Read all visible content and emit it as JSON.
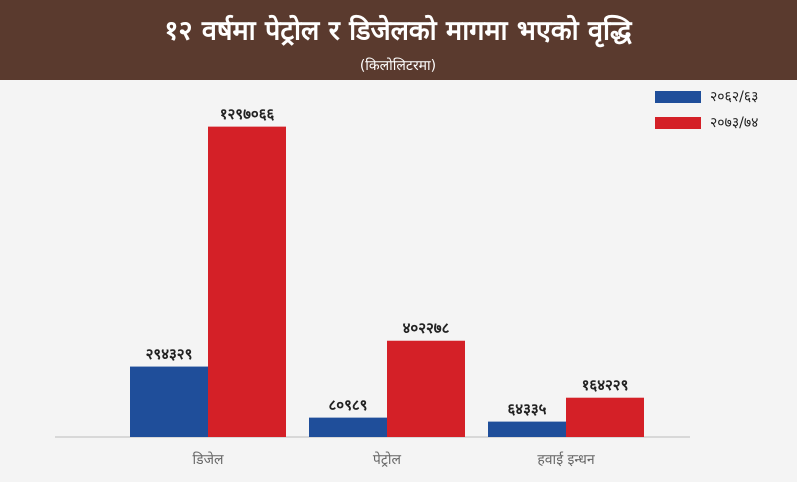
{
  "chart_data": {
    "type": "bar",
    "title": "१२ वर्षमा पेट्रोल र डिजेलको मागमा भएको वृद्धि",
    "subtitle": "(किलोलिटरमा)",
    "categories": [
      "डिजेल",
      "पेट्रोल",
      "हवाई इन्धन"
    ],
    "series": [
      {
        "name": "२०६२/६३",
        "color": "#1f4e9a",
        "values": [
          294329,
          80989,
          64335
        ],
        "value_labels": [
          "२९४३२९",
          "८०९८९",
          "६४३३५"
        ]
      },
      {
        "name": "२०७३/७४",
        "color": "#d42027",
        "values": [
          1297066,
          402278,
          164229
        ],
        "value_labels": [
          "१२९७०६६",
          "४०२२७८",
          "१६४२२९"
        ]
      }
    ],
    "ylim": [
      0,
      1400000
    ],
    "legend": "top-right"
  }
}
